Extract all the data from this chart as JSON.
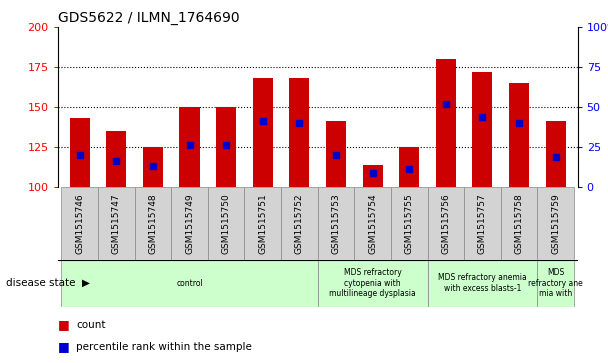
{
  "title": "GDS5622 / ILMN_1764690",
  "samples": [
    "GSM1515746",
    "GSM1515747",
    "GSM1515748",
    "GSM1515749",
    "GSM1515750",
    "GSM1515751",
    "GSM1515752",
    "GSM1515753",
    "GSM1515754",
    "GSM1515755",
    "GSM1515756",
    "GSM1515757",
    "GSM1515758",
    "GSM1515759"
  ],
  "counts": [
    143,
    135,
    125,
    150,
    150,
    168,
    168,
    141,
    114,
    125,
    180,
    172,
    165,
    141
  ],
  "percentile_values": [
    120,
    116,
    113,
    126,
    126,
    141,
    140,
    120,
    109,
    111,
    152,
    144,
    140,
    119
  ],
  "ylim": [
    100,
    200
  ],
  "y2lim": [
    0,
    100
  ],
  "yticks": [
    100,
    125,
    150,
    175,
    200
  ],
  "y2ticks": [
    0,
    25,
    50,
    75,
    100
  ],
  "bar_color": "#cc0000",
  "dot_color": "#0000cc",
  "background_color": "#ffffff",
  "title_fontsize": 10,
  "sample_box_color": "#d3d3d3",
  "group_box_color": "#ccffcc",
  "groups": [
    {
      "label": "control",
      "start": 0,
      "end": 7
    },
    {
      "label": "MDS refractory\ncytopenia with\nmultilineage dysplasia",
      "start": 7,
      "end": 10
    },
    {
      "label": "MDS refractory anemia\nwith excess blasts-1",
      "start": 10,
      "end": 13
    },
    {
      "label": "MDS\nrefractory ane\nmia with",
      "start": 13,
      "end": 14
    }
  ]
}
